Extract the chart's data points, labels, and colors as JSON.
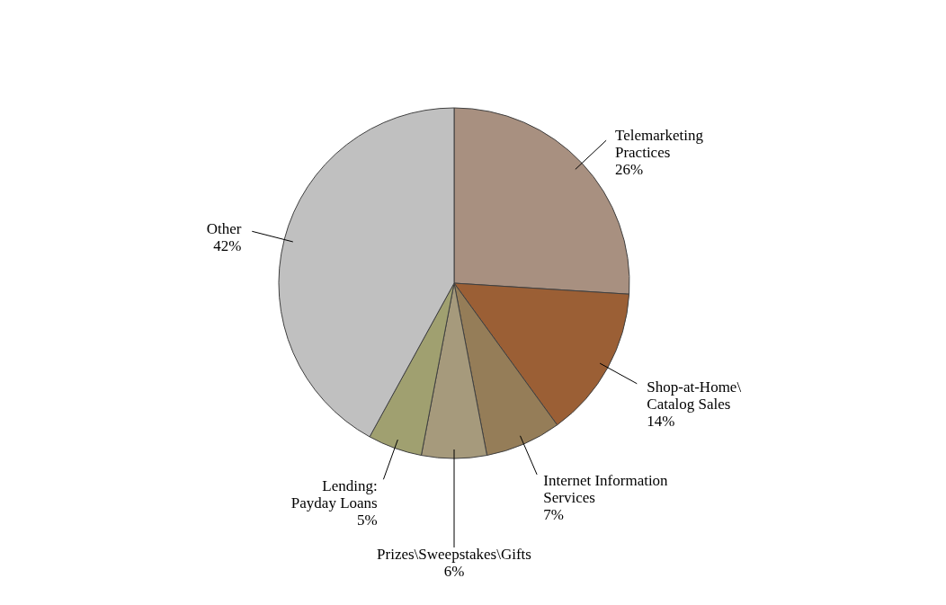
{
  "chart_data": {
    "type": "pie",
    "categories": [
      "Telemarketing\nPractices",
      "Shop-at-Home\\\nCatalog Sales",
      "Internet Information\nServices",
      "Prizes\\Sweepstakes\\Gifts",
      "Lending:\nPayday Loans",
      "Other"
    ],
    "values": [
      26,
      14,
      7,
      6,
      5,
      42
    ],
    "colors": [
      "#a89080",
      "#9b5f35",
      "#957d58",
      "#a69a7c",
      "#a0a070",
      "#c0c0c0"
    ],
    "value_labels": [
      "26%",
      "14%",
      "7%",
      "6%",
      "5%",
      "42%"
    ],
    "legend": false
  }
}
